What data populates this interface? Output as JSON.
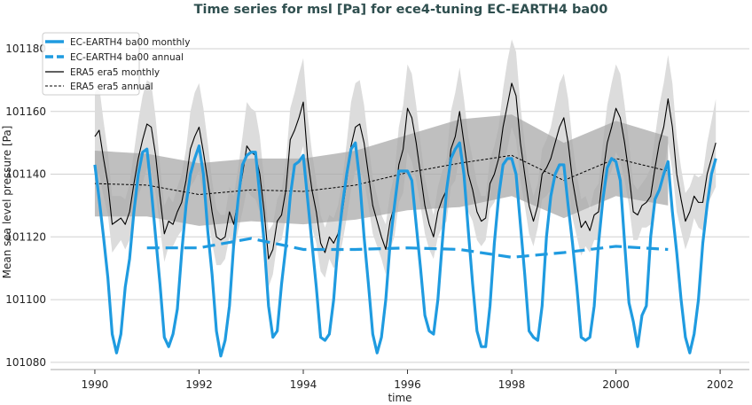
{
  "chart_data": {
    "type": "line",
    "title": "Time series for msl [Pa] for ece4-tuning EC-EARTH4 ba00",
    "xlabel": "time",
    "ylabel": "Mean sea level pressure [Pa]",
    "xlim": [
      1989.15,
      2002.56
    ],
    "ylim": [
      101077.7,
      101184.8
    ],
    "xticks": [
      1990,
      1992,
      1994,
      1996,
      1998,
      2000,
      2002
    ],
    "yticks": [
      101080,
      101100,
      101120,
      101140,
      101160,
      101180
    ],
    "grid": "horizontal",
    "legend_position": "top-left",
    "colors": {
      "model": "#1f9be0",
      "obs": "#000000",
      "monthly_band": "#dcdcdc",
      "annual_band": "#a9a9a9"
    },
    "monthly_start": 1990,
    "series": [
      {
        "name": "EC-EARTH4 ba00 monthly",
        "style": "solid-thick",
        "values": [
          101143,
          101132,
          101120,
          101107,
          101089,
          101083,
          101089,
          101104,
          101113,
          101128,
          101140,
          101147,
          101148,
          101135,
          101120,
          101105,
          101088,
          101085,
          101089,
          101097,
          101115,
          101130,
          101140,
          101145,
          101149,
          101140,
          101122,
          101108,
          101090,
          101082,
          101087,
          101098,
          101118,
          101132,
          101143,
          101146,
          101147,
          101147,
          101133,
          101118,
          101098,
          101088,
          101090,
          101105,
          101117,
          101133,
          101143,
          101144,
          101146,
          101132,
          101118,
          101104,
          101088,
          101087,
          101089,
          101100,
          101118,
          101130,
          101140,
          101148,
          101150,
          101138,
          101120,
          101105,
          101089,
          101083,
          101088,
          101100,
          101118,
          101130,
          101141,
          101141,
          101141,
          101138,
          101124,
          101110,
          101095,
          101090,
          101089,
          101100,
          101118,
          101135,
          101145,
          101148,
          101150,
          101140,
          101122,
          101105,
          101090,
          101085,
          101085,
          101098,
          101118,
          101133,
          101143,
          101145,
          101145,
          101140,
          101124,
          101108,
          101090,
          101088,
          101087,
          101098,
          101120,
          101133,
          101140,
          101143,
          101143,
          101130,
          101118,
          101104,
          101088,
          101087,
          101088,
          101098,
          101118,
          101132,
          101142,
          101145,
          101144,
          101138,
          101118,
          101099,
          101093,
          101085,
          101095,
          101098,
          101120,
          101132,
          101135,
          101140,
          101144,
          101128,
          101115,
          101100,
          101088,
          101083,
          101089,
          101100,
          101118,
          101130,
          101140,
          101145
        ]
      },
      {
        "name": "EC-EARTH4 ba00 annual",
        "style": "dashed-thick",
        "x": [
          1991,
          1992,
          1993,
          1994,
          1995,
          1996,
          1997,
          1998,
          1999,
          2000,
          2001
        ],
        "values": [
          101116.5,
          101116.5,
          101119.5,
          101116,
          101116,
          101116.5,
          101116,
          101113.5,
          101115,
          101117,
          101116
        ]
      },
      {
        "name": "ERA5 era5 monthly",
        "style": "solid-thin",
        "values": [
          101152,
          101154,
          101145,
          101137,
          101124,
          101125,
          101126,
          101124,
          101128,
          101137,
          101145,
          101151,
          101156,
          101155,
          101146,
          101133,
          101121,
          101125,
          101124,
          101128,
          101131,
          101138,
          101148,
          101152,
          101155,
          101147,
          101138,
          101128,
          101120,
          101119,
          101120,
          101128,
          101124,
          101132,
          101140,
          101149,
          101147,
          101146,
          101140,
          101128,
          101113,
          101116,
          101125,
          101127,
          101135,
          101151,
          101154,
          101158,
          101163,
          101145,
          101135,
          101128,
          101118,
          101115,
          101120,
          101118,
          101121,
          101128,
          101138,
          101149,
          101155,
          101156,
          101150,
          101140,
          101130,
          101125,
          101120,
          101116,
          101125,
          101130,
          101143,
          101148,
          101161,
          101158,
          101150,
          101140,
          101130,
          101124,
          101120,
          101128,
          101132,
          101135,
          101148,
          101152,
          101160,
          101150,
          101140,
          101135,
          101128,
          101125,
          101126,
          101137,
          101140,
          101145,
          101155,
          101162,
          101169,
          101165,
          101150,
          101140,
          101130,
          101125,
          101130,
          101140,
          101142,
          101145,
          101150,
          101155,
          101158,
          101150,
          101138,
          101130,
          101123,
          101125,
          101122,
          101127,
          101128,
          101140,
          101150,
          101155,
          101161,
          101158,
          101150,
          101140,
          101128,
          101127,
          101130,
          101131,
          101133,
          101142,
          101150,
          101155,
          101164,
          101155,
          101140,
          101132,
          101125,
          101128,
          101133,
          101131,
          101131,
          101140,
          101145,
          101150
        ]
      },
      {
        "name": "ERA5 era5 annual",
        "style": "dashed-thin",
        "x": [
          1990,
          1991,
          1992,
          1993,
          1994,
          1995,
          1996,
          1997,
          1998,
          1999,
          2000,
          2001
        ],
        "values": [
          101137,
          101136.5,
          101133.5,
          101135,
          101134.5,
          101136.5,
          101140.5,
          101143.5,
          101146,
          101138,
          101145,
          101141
        ]
      }
    ],
    "bands": {
      "era5_monthly_std_by_calendar_month": [
        14,
        14,
        12,
        10,
        9,
        8,
        7,
        8,
        9,
        10,
        12,
        14
      ],
      "era5_annual_std": [
        10.5,
        10,
        10,
        10,
        10.5,
        11,
        12,
        14,
        13,
        12,
        12,
        11
      ]
    }
  }
}
